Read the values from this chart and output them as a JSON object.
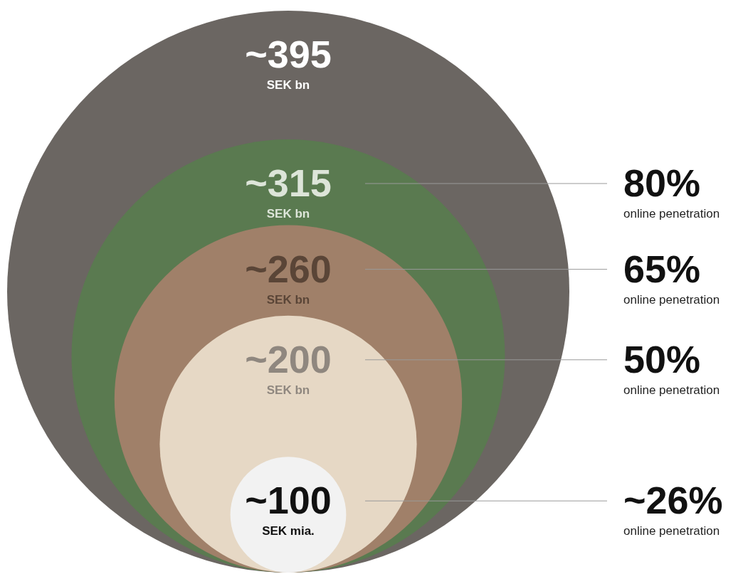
{
  "chart_data": {
    "type": "other",
    "categories": [
      "SEK bn",
      "SEK bn",
      "SEK bn",
      "SEK bn",
      "SEK mia."
    ],
    "series": [
      {
        "colors": [
          "#6b6662",
          "#5a7a50",
          "#a08069",
          "#e6d8c5",
          "#f2f2f2"
        ],
        "values": [
          395,
          315,
          260,
          200,
          100
        ],
        "value_labels": [
          "~395",
          "~315",
          "~260",
          "~200",
          "~100"
        ]
      },
      {
        "values": [
          null,
          80,
          65,
          50,
          26
        ],
        "value_labels": [
          null,
          "80%",
          "65%",
          "50%",
          "~26%"
        ]
      }
    ],
    "annotations": [
      null,
      "online penetration",
      "online penetration",
      "online penetration",
      "online penetration"
    ]
  }
}
